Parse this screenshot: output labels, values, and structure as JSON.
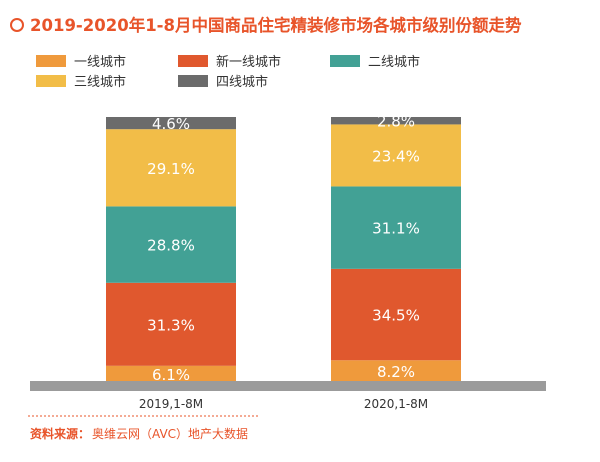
{
  "colors": {
    "accent": "#E8542A",
    "tier1": "#EF9A3C",
    "newtier1": "#E0582E",
    "tier2": "#42A195",
    "tier3": "#F2BD48",
    "tier4": "#6B6B6B",
    "axis": "#9B9B9B",
    "tick_text": "#333333",
    "label_text": "#ffffff"
  },
  "source": {
    "label": "资料来源：",
    "text": "奥维云网（AVC）地产大数据"
  },
  "chart_data": {
    "type": "bar",
    "stacked": true,
    "title": "2019-2020年1-8月中国商品住宅精装修市场各城市级别份额走势",
    "categories": [
      "2019,1-8M",
      "2020,1-8M"
    ],
    "series": [
      {
        "name": "一线城市",
        "color": "#EF9A3C",
        "values": [
          6.1,
          8.2
        ],
        "labels": [
          "6.1%",
          "8.2%"
        ]
      },
      {
        "name": "新一线城市",
        "color": "#E0582E",
        "values": [
          31.3,
          34.5
        ],
        "labels": [
          "31.3%",
          "34.5%"
        ]
      },
      {
        "name": "二线城市",
        "color": "#42A195",
        "values": [
          28.8,
          31.1
        ],
        "labels": [
          "28.8%",
          "31.1%"
        ]
      },
      {
        "name": "三线城市",
        "color": "#F2BD48",
        "values": [
          29.1,
          23.4
        ],
        "labels": [
          "29.1%",
          "23.4%"
        ]
      },
      {
        "name": "四线城市",
        "color": "#6B6B6B",
        "values": [
          4.6,
          2.8
        ],
        "labels": [
          "4.6%",
          "2.8%"
        ]
      }
    ],
    "ylim": [
      0,
      100
    ],
    "grid": false,
    "legend_position": "top-left"
  }
}
